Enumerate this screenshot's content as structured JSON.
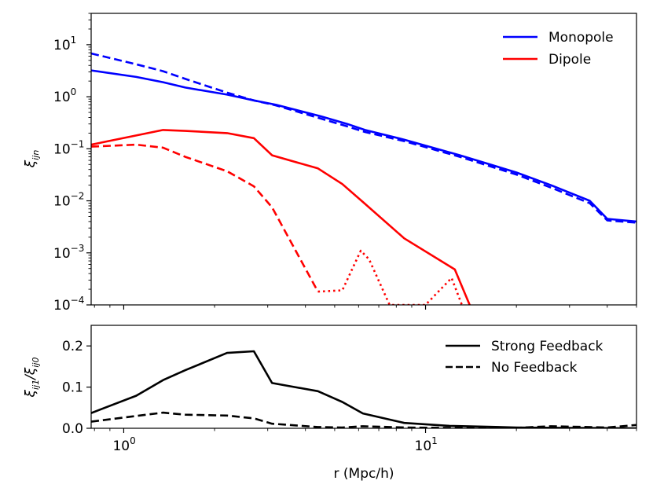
{
  "chart_data": [
    {
      "type": "line",
      "panel": "top",
      "xscale": "log",
      "yscale": "log",
      "xlim": [
        0.78,
        50
      ],
      "ylim": [
        0.0001,
        40
      ],
      "ylabel": "ξ_ijn",
      "yticks": [
        {
          "value": 0.0001,
          "base": "10",
          "exp": "−4"
        },
        {
          "value": 0.001,
          "base": "10",
          "exp": "−3"
        },
        {
          "value": 0.01,
          "base": "10",
          "exp": "−2"
        },
        {
          "value": 0.1,
          "base": "10",
          "exp": "−1"
        },
        {
          "value": 1,
          "base": "10",
          "exp": "0"
        },
        {
          "value": 10,
          "base": "10",
          "exp": "1"
        }
      ],
      "legend": {
        "position": "top-right",
        "entries": [
          {
            "label": "Monopole",
            "color": "#0000ff"
          },
          {
            "label": "Dipole",
            "color": "#ff0000"
          }
        ]
      },
      "series": [
        {
          "name": "Monopole strong feedback",
          "color": "#0000ff",
          "style": "solid",
          "x": [
            0.78,
            1.1,
            1.35,
            1.6,
            2.2,
            2.7,
            3.2,
            4.5,
            5.5,
            6.3,
            8.5,
            13,
            20,
            26,
            35,
            40,
            50
          ],
          "y": [
            3.2,
            2.4,
            1.9,
            1.5,
            1.1,
            0.85,
            0.7,
            0.42,
            0.3,
            0.23,
            0.15,
            0.075,
            0.035,
            0.02,
            0.01,
            0.0045,
            0.004
          ]
        },
        {
          "name": "Monopole no feedback",
          "color": "#0000ff",
          "style": "dashed",
          "x": [
            0.78,
            1.1,
            1.35,
            1.6,
            2.2,
            2.7,
            3.2,
            4.5,
            5.5,
            6.3,
            8.5,
            13,
            20,
            26,
            35,
            40,
            50
          ],
          "y": [
            6.8,
            4.2,
            3.1,
            2.2,
            1.2,
            0.85,
            0.68,
            0.38,
            0.27,
            0.21,
            0.14,
            0.07,
            0.032,
            0.018,
            0.009,
            0.0042,
            0.0038
          ]
        },
        {
          "name": "Dipole strong feedback",
          "color": "#ff0000",
          "style": "solid",
          "x": [
            0.78,
            1.1,
            1.35,
            1.6,
            2.2,
            2.7,
            3.1,
            4.4,
            5.3,
            6.2,
            8.5,
            12.5,
            14.0
          ],
          "y": [
            0.12,
            0.18,
            0.23,
            0.22,
            0.2,
            0.16,
            0.075,
            0.042,
            0.021,
            0.0095,
            0.0019,
            0.00048,
            0.0001
          ]
        },
        {
          "name": "Dipole no feedback",
          "color": "#ff0000",
          "style": "dashed",
          "x": [
            0.78,
            1.1,
            1.35,
            1.6,
            2.2,
            2.7,
            3.1,
            4.4
          ],
          "y": [
            0.11,
            0.12,
            0.105,
            0.07,
            0.037,
            0.019,
            0.0075,
            0.00018
          ]
        },
        {
          "name": "Dipole no feedback (negative)",
          "color": "#ff0000",
          "style": "dotted",
          "x": [
            4.4,
            5.3,
            6.1,
            6.5,
            7.6,
            10,
            12.2,
            13.2
          ],
          "y": [
            0.00018,
            0.00019,
            0.0011,
            0.00075,
            0.0001,
            0.0001,
            0.00033,
            0.0001
          ]
        }
      ]
    },
    {
      "type": "line",
      "panel": "bottom",
      "xscale": "log",
      "xlim": [
        0.78,
        50
      ],
      "ylim": [
        0,
        0.25
      ],
      "xlabel": "r (Mpc/h)",
      "ylabel": "ξ_ij1/ξ_ij0",
      "yticks": [
        "0.0",
        "0.1",
        "0.2"
      ],
      "xticks": [
        {
          "value": 1,
          "base": "10",
          "exp": "0"
        },
        {
          "value": 10,
          "base": "10",
          "exp": "1"
        }
      ],
      "legend": {
        "position": "top-right",
        "entries": [
          {
            "label": "Strong Feedback",
            "style": "solid"
          },
          {
            "label": "No Feedback",
            "style": "dashed"
          }
        ]
      },
      "series": [
        {
          "name": "Strong Feedback",
          "color": "#000000",
          "style": "solid",
          "x": [
            0.78,
            1.1,
            1.35,
            1.6,
            2.2,
            2.7,
            3.1,
            4.4,
            5.3,
            6.2,
            8.5,
            12,
            20,
            30,
            50
          ],
          "y": [
            0.037,
            0.079,
            0.117,
            0.141,
            0.183,
            0.187,
            0.11,
            0.09,
            0.064,
            0.036,
            0.013,
            0.006,
            0.002,
            0.001,
            0.0
          ]
        },
        {
          "name": "No Feedback",
          "color": "#000000",
          "style": "dashed",
          "x": [
            0.78,
            1.1,
            1.35,
            1.6,
            2.2,
            2.7,
            3.1,
            4.4,
            5.3,
            6.2,
            8.5,
            12,
            20,
            26,
            30,
            40,
            50
          ],
          "y": [
            0.016,
            0.03,
            0.038,
            0.033,
            0.031,
            0.024,
            0.011,
            0.003,
            0.002,
            0.005,
            0.002,
            0.001,
            0.001,
            0.005,
            0.004,
            0.002,
            0.008
          ]
        }
      ]
    }
  ]
}
